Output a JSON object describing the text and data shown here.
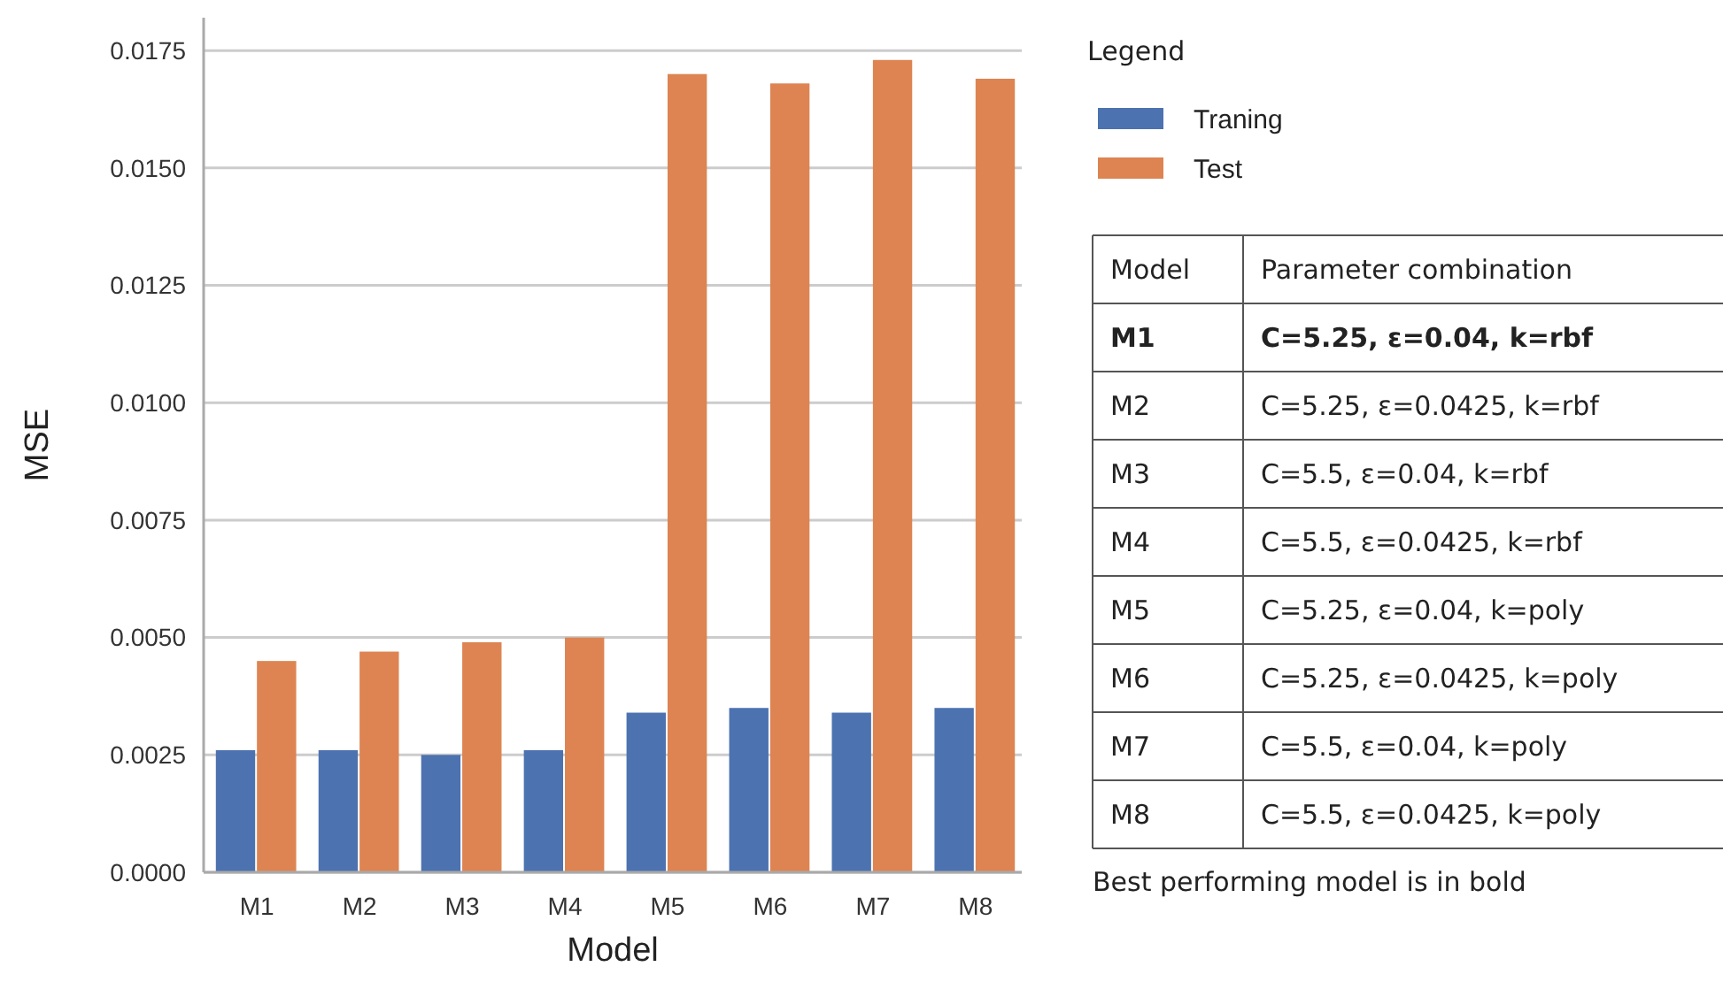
{
  "chart_data": {
    "type": "bar",
    "xlabel": "Model",
    "ylabel": "MSE",
    "legend_title": "Legend",
    "legend": "top right",
    "grid": "y",
    "categories": [
      "M1",
      "M2",
      "M3",
      "M4",
      "M5",
      "M6",
      "M7",
      "M8"
    ],
    "ylim": [
      0,
      0.0182
    ],
    "yticks": [
      {
        "value": 0,
        "label": "0.0000"
      },
      {
        "value": 0.0025,
        "label": "0.0025"
      },
      {
        "value": 0.005,
        "label": "0.0050"
      },
      {
        "value": 0.0075,
        "label": "0.0075"
      },
      {
        "value": 0.01,
        "label": "0.0100"
      },
      {
        "value": 0.0125,
        "label": "0.0125"
      },
      {
        "value": 0.015,
        "label": "0.0150"
      },
      {
        "value": 0.0175,
        "label": "0.0175"
      }
    ],
    "series": [
      {
        "name": "Traning",
        "color": "#4c72b0",
        "values": [
          0.0026,
          0.0026,
          0.0025,
          0.0026,
          0.0034,
          0.0035,
          0.0034,
          0.0035
        ]
      },
      {
        "name": "Test",
        "color": "#dd8452",
        "values": [
          0.0045,
          0.0047,
          0.0049,
          0.005,
          0.017,
          0.0168,
          0.0173,
          0.0169
        ]
      }
    ],
    "annotations": [
      "Model",
      "Parameter combination",
      "M1",
      "C=5.25, ε=0.04, k=rbf",
      "M2",
      "C=5.25, ε=0.0425, k=rbf",
      "M3",
      "C=5.5, ε=0.04, k=rbf",
      "M4",
      "C=5.5, ε=0.0425, k=rbf",
      "M5",
      "C=5.25, ε=0.04, k=poly",
      "M6",
      "C=5.25, ε=0.0425, k=poly",
      "M7",
      "C=5.5, ε=0.04, k=poly",
      "M8",
      "C=5.5, ε=0.0425, k=poly",
      "Best performing model is in bold"
    ]
  }
}
